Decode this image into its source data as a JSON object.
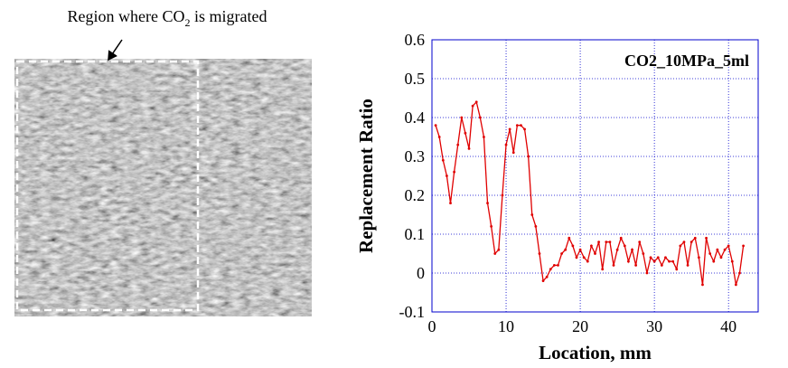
{
  "annotation": [
    "Region where CO",
    "2",
    " is migrated"
  ],
  "chart_data": {
    "type": "line",
    "xlabel": "Location, mm",
    "ylabel": "Replacement Ratio",
    "xlim": [
      0,
      44
    ],
    "xticks": [
      0,
      10,
      20,
      30,
      40
    ],
    "ylim": [
      -0.1,
      0.6
    ],
    "yticks": [
      -0.1,
      0,
      0.1,
      0.2,
      0.3,
      0.4,
      0.5,
      0.6
    ],
    "grid": true,
    "grid_color": "#0000cc",
    "axis_color": "#0000cc",
    "legend": "upper right",
    "series": [
      {
        "name": "CO2_10MPa_5ml",
        "color": "#e00000",
        "x": [
          0.5,
          1,
          1.5,
          2,
          2.5,
          3,
          3.5,
          4,
          4.5,
          5,
          5.5,
          6,
          6.5,
          7,
          7.5,
          8,
          8.5,
          9,
          9.5,
          10,
          10.5,
          11,
          11.5,
          12,
          12.5,
          13,
          13.5,
          14,
          14.5,
          15,
          15.5,
          16,
          16.5,
          17,
          17.5,
          18,
          18.5,
          19,
          19.5,
          20,
          20.5,
          21,
          21.5,
          22,
          22.5,
          23,
          23.5,
          24,
          24.5,
          25,
          25.5,
          26,
          26.5,
          27,
          27.5,
          28,
          28.5,
          29,
          29.5,
          30,
          30.5,
          31,
          31.5,
          32,
          32.5,
          33,
          33.5,
          34,
          34.5,
          35,
          35.5,
          36,
          36.5,
          37,
          37.5,
          38,
          38.5,
          39,
          39.5,
          40,
          40.5,
          41,
          41.5,
          42
        ],
        "values": [
          0.38,
          0.35,
          0.29,
          0.25,
          0.18,
          0.26,
          0.33,
          0.4,
          0.36,
          0.32,
          0.43,
          0.44,
          0.4,
          0.35,
          0.18,
          0.12,
          0.05,
          0.06,
          0.2,
          0.33,
          0.37,
          0.31,
          0.38,
          0.38,
          0.37,
          0.3,
          0.15,
          0.12,
          0.05,
          -0.02,
          -0.01,
          0.01,
          0.02,
          0.02,
          0.05,
          0.06,
          0.09,
          0.07,
          0.04,
          0.06,
          0.04,
          0.03,
          0.07,
          0.05,
          0.08,
          0.01,
          0.08,
          0.08,
          0.02,
          0.06,
          0.09,
          0.07,
          0.03,
          0.06,
          0.02,
          0.08,
          0.05,
          0.0,
          0.04,
          0.03,
          0.04,
          0.02,
          0.04,
          0.03,
          0.03,
          0.01,
          0.07,
          0.08,
          0.02,
          0.08,
          0.09,
          0.04,
          -0.03,
          0.09,
          0.05,
          0.03,
          0.06,
          0.04,
          0.06,
          0.07,
          0.03,
          -0.03,
          0.0,
          0.07
        ]
      }
    ]
  }
}
